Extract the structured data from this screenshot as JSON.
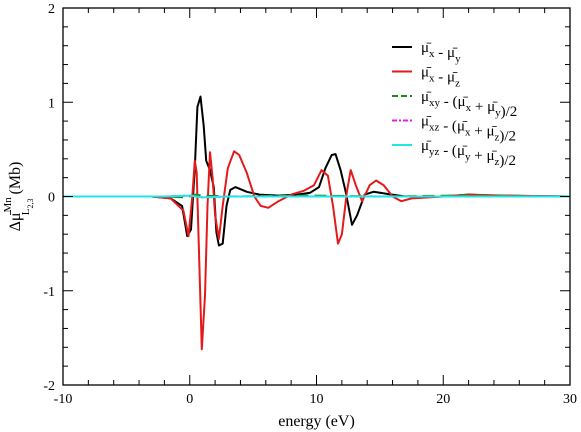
{
  "chart_data": {
    "type": "line",
    "title": "",
    "xlabel": "energy (eV)",
    "ylabel": "Δμ̄L2,3Mn (Mb)",
    "ylabel_parts": {
      "prefix": "Δ",
      "mu": "μ̄",
      "sub": "L",
      "subsub": "2,3",
      "sup": "Mn",
      "unit": " (Mb)"
    },
    "xlim": [
      -10,
      30
    ],
    "ylim": [
      -2,
      2
    ],
    "xticks": [
      "-10",
      "0",
      "10",
      "20",
      "30"
    ],
    "yticks": [
      "-2",
      "-1",
      "0",
      "1",
      "2"
    ],
    "grid": false,
    "legend_position": "top-right",
    "series": [
      {
        "name": "μ̄x - μ̄y",
        "legend_parts": [
          [
            "μ̄",
            "x"
          ],
          [
            " - ",
            ""
          ],
          [
            "μ̄",
            "y"
          ]
        ],
        "color": "#000000",
        "dash": "solid",
        "points": [
          [
            -10,
            0
          ],
          [
            -3,
            0
          ],
          [
            -1.5,
            -0.02
          ],
          [
            -0.6,
            -0.1
          ],
          [
            -0.2,
            -0.42
          ],
          [
            0.1,
            -0.35
          ],
          [
            0.4,
            0.3
          ],
          [
            0.6,
            0.95
          ],
          [
            0.85,
            1.06
          ],
          [
            1.1,
            0.75
          ],
          [
            1.3,
            0.38
          ],
          [
            1.6,
            0.28
          ],
          [
            1.9,
            0.1
          ],
          [
            2.1,
            -0.38
          ],
          [
            2.3,
            -0.52
          ],
          [
            2.6,
            -0.5
          ],
          [
            2.9,
            -0.1
          ],
          [
            3.2,
            0.07
          ],
          [
            3.6,
            0.1
          ],
          [
            4.5,
            0.05
          ],
          [
            5.5,
            0.02
          ],
          [
            7,
            0.01
          ],
          [
            8.5,
            0.02
          ],
          [
            9.5,
            0.04
          ],
          [
            10.2,
            0.1
          ],
          [
            10.7,
            0.3
          ],
          [
            11.2,
            0.44
          ],
          [
            11.5,
            0.45
          ],
          [
            11.9,
            0.28
          ],
          [
            12.3,
            0.05
          ],
          [
            12.8,
            -0.3
          ],
          [
            13.2,
            -0.2
          ],
          [
            13.8,
            0.02
          ],
          [
            14.5,
            0.05
          ],
          [
            15.5,
            0.03
          ],
          [
            17,
            0
          ],
          [
            20,
            0
          ],
          [
            22,
            0.02
          ],
          [
            24,
            0.01
          ],
          [
            30,
            0
          ]
        ]
      },
      {
        "name": "μ̄x - μ̄z",
        "legend_parts": [
          [
            "μ̄",
            "x"
          ],
          [
            " - ",
            ""
          ],
          [
            "μ̄",
            "z"
          ]
        ],
        "color": "#e41a1a",
        "dash": "solid",
        "points": [
          [
            -10,
            0
          ],
          [
            -3,
            0
          ],
          [
            -1.5,
            -0.02
          ],
          [
            -0.5,
            -0.15
          ],
          [
            -0.1,
            -0.42
          ],
          [
            0.2,
            0.0
          ],
          [
            0.4,
            0.38
          ],
          [
            0.55,
            0.25
          ],
          [
            0.75,
            -0.7
          ],
          [
            0.95,
            -1.62
          ],
          [
            1.2,
            -1.05
          ],
          [
            1.4,
            -0.1
          ],
          [
            1.6,
            0.47
          ],
          [
            1.8,
            0.2
          ],
          [
            2.0,
            -0.2
          ],
          [
            2.3,
            -0.45
          ],
          [
            2.6,
            -0.1
          ],
          [
            3.0,
            0.3
          ],
          [
            3.5,
            0.48
          ],
          [
            3.9,
            0.44
          ],
          [
            4.5,
            0.25
          ],
          [
            5.1,
            0.0
          ],
          [
            5.6,
            -0.1
          ],
          [
            6.2,
            -0.12
          ],
          [
            7.0,
            -0.05
          ],
          [
            8.0,
            0.02
          ],
          [
            9.0,
            0.06
          ],
          [
            9.8,
            0.12
          ],
          [
            10.4,
            0.28
          ],
          [
            10.9,
            0.22
          ],
          [
            11.3,
            -0.1
          ],
          [
            11.7,
            -0.5
          ],
          [
            12.0,
            -0.4
          ],
          [
            12.4,
            0.05
          ],
          [
            12.7,
            0.28
          ],
          [
            13.1,
            0.12
          ],
          [
            13.6,
            -0.05
          ],
          [
            14.2,
            0.12
          ],
          [
            14.7,
            0.17
          ],
          [
            15.3,
            0.12
          ],
          [
            16.0,
            0.0
          ],
          [
            16.7,
            -0.05
          ],
          [
            17.5,
            -0.02
          ],
          [
            20,
            0
          ],
          [
            22,
            0.02
          ],
          [
            25,
            0.01
          ],
          [
            30,
            0
          ]
        ]
      },
      {
        "name": "μ̄xy - (μ̄x + μ̄y)/2",
        "legend_parts": [
          [
            "μ̄",
            "xy"
          ],
          [
            " - (",
            ""
          ],
          [
            "μ̄",
            "x"
          ],
          [
            " + ",
            ""
          ],
          [
            "μ̄",
            "y"
          ],
          [
            ")/2",
            ""
          ]
        ],
        "color": "#1a8a1a",
        "dash": "12 6",
        "points": [
          [
            -10,
            0
          ],
          [
            -2,
            0
          ],
          [
            -0.3,
            -0.01
          ],
          [
            0.5,
            0.02
          ],
          [
            1,
            0.01
          ],
          [
            3,
            0
          ],
          [
            10,
            0.01
          ],
          [
            15,
            0
          ],
          [
            21,
            0.01
          ],
          [
            30,
            0
          ]
        ]
      },
      {
        "name": "μ̄xz - (μ̄x + μ̄z)/2",
        "legend_parts": [
          [
            "μ̄",
            "xz"
          ],
          [
            " - (",
            ""
          ],
          [
            "μ̄",
            "x"
          ],
          [
            " + ",
            ""
          ],
          [
            "μ̄",
            "z"
          ],
          [
            ")/2",
            ""
          ]
        ],
        "color": "#e020e0",
        "dash": "8 4 2 4",
        "points": [
          [
            -10,
            0
          ],
          [
            -2,
            0
          ],
          [
            0,
            0.01
          ],
          [
            1,
            -0.01
          ],
          [
            3,
            0
          ],
          [
            10,
            0
          ],
          [
            15,
            0
          ],
          [
            30,
            0
          ]
        ]
      },
      {
        "name": "μ̄yz - (μ̄y + μ̄z)/2",
        "legend_parts": [
          [
            "μ̄",
            "yz"
          ],
          [
            " - (",
            ""
          ],
          [
            "μ̄",
            "y"
          ],
          [
            " + ",
            ""
          ],
          [
            "μ̄",
            "z"
          ],
          [
            ")/2",
            ""
          ]
        ],
        "color": "#22e5e5",
        "dash": "solid",
        "points": [
          [
            -10,
            0
          ],
          [
            -2,
            0
          ],
          [
            0,
            0.01
          ],
          [
            1,
            -0.01
          ],
          [
            3,
            0
          ],
          [
            12,
            0
          ],
          [
            30,
            0
          ]
        ]
      }
    ]
  }
}
